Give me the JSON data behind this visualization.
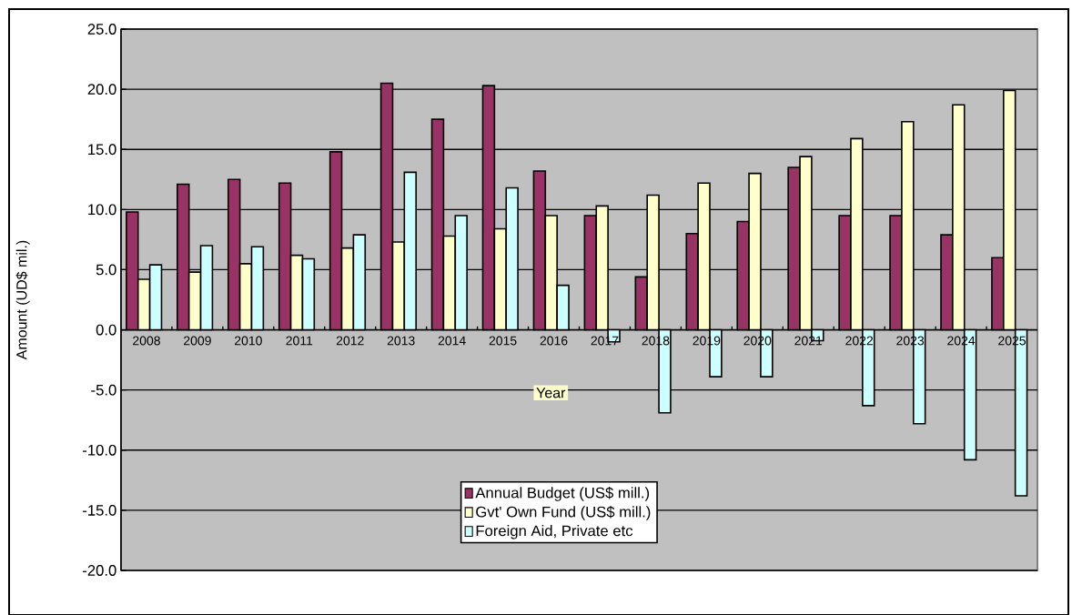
{
  "chart_data": {
    "type": "bar",
    "xlabel": "Year",
    "ylabel": "Amount (UD$ mil.)",
    "categories": [
      "2008",
      "2009",
      "2010",
      "2011",
      "2012",
      "2013",
      "2014",
      "2015",
      "2016",
      "2017",
      "2018",
      "2019",
      "2020",
      "2021",
      "2022",
      "2023",
      "2024",
      "2025"
    ],
    "series": [
      {
        "name": "Annual Budget (US$ mill.)",
        "color": "#993366",
        "values": [
          9.8,
          12.1,
          12.5,
          12.2,
          14.8,
          20.5,
          17.5,
          20.3,
          13.2,
          9.5,
          4.4,
          8.0,
          9.0,
          13.5,
          9.5,
          9.5,
          7.9,
          6.0
        ]
      },
      {
        "name": "Gvt' Own Fund (US$ mill.)",
        "color": "#ffffcc",
        "values": [
          4.2,
          4.8,
          5.5,
          6.2,
          6.8,
          7.3,
          7.8,
          8.4,
          9.5,
          10.3,
          11.2,
          12.2,
          13.0,
          14.4,
          15.9,
          17.3,
          18.7,
          19.9
        ]
      },
      {
        "name": "Foreign Aid, Private etc",
        "color": "#ccffff",
        "values": [
          5.4,
          7.0,
          6.9,
          5.9,
          7.9,
          13.1,
          9.5,
          11.8,
          3.7,
          -1.0,
          -6.9,
          -3.9,
          -3.9,
          -0.9,
          -6.3,
          -7.8,
          -10.8,
          -13.8
        ]
      }
    ],
    "ylim": [
      -20,
      25
    ],
    "yticks": [
      {
        "value": -20,
        "label": "-20.0"
      },
      {
        "value": -15,
        "label": "-15.0"
      },
      {
        "value": -10,
        "label": "-10.0"
      },
      {
        "value": -5,
        "label": "-5.0"
      },
      {
        "value": 0,
        "label": "0.0"
      },
      {
        "value": 5,
        "label": "5.0"
      },
      {
        "value": 10,
        "label": "10.0"
      },
      {
        "value": 15,
        "label": "15.0"
      },
      {
        "value": 20,
        "label": "20.0"
      },
      {
        "value": 25,
        "label": "25.0"
      }
    ],
    "grid": "y",
    "legend": "bottom"
  }
}
